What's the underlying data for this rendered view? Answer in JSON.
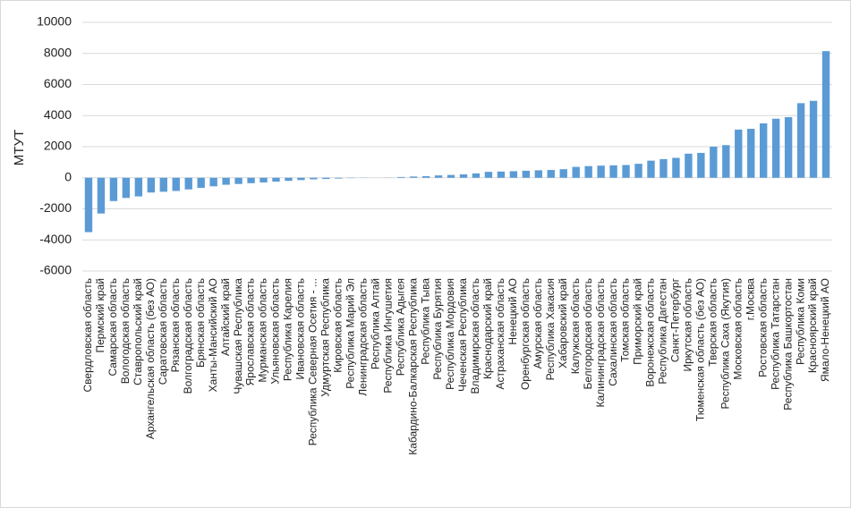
{
  "chart_data": {
    "type": "bar",
    "y_label": "МТУТ",
    "color": "#5b9bd5",
    "categories": [
      "Свердловская область",
      "Пермский край",
      "Самарская область",
      "Вологодская область",
      "Ставропольский край",
      "Архангельская область (без АО)",
      "Саратовская область",
      "Рязанская область",
      "Волгоградская область",
      "Брянская область",
      "Ханты-Мансийский АО",
      "Алтайский край",
      "Чувашская Республика",
      "Ярославская область",
      "Мурманская область",
      "Ульяновская область",
      "Республика Карелия",
      "Ивановская область",
      "Республика Северная Осетия - ...",
      "Удмуртская Республика",
      "Кировская область",
      "Республика Марий Эл",
      "Ленинградская область",
      "Республика Алтай",
      "Республика Ингушетия",
      "Республика Адыгея",
      "Кабардино-Балкарская Республика",
      "Республика Тыва",
      "Республика Бурятия",
      "Республика Мордовия",
      "Чеченская Республика",
      "Владимирская область",
      "Краснодарский край",
      "Астраханская область",
      "Ненецкий АО",
      "Оренбургская область",
      "Амурская область",
      "Республика Хакасия",
      "Хабаровский край",
      "Калужская область",
      "Белгородская область",
      "Калининградская область",
      "Сахалинская область",
      "Томская область",
      "Приморский край",
      "Воронежская область",
      "Республика Дагестан",
      "Санкт-Петербург",
      "Иркутская область",
      "Тюменская область (без АО)",
      "Тверская область",
      "Республика Саха (Якутия)",
      "Московская область",
      "г.Москва",
      "Ростовская область",
      "Республика Татарстан",
      "Республика Башкортостан",
      "Республика Коми",
      "Красноярский край",
      "Ямало-Ненецкий АО"
    ],
    "values": [
      -3500,
      -2300,
      -1500,
      -1300,
      -1200,
      -950,
      -900,
      -850,
      -750,
      -650,
      -550,
      -450,
      -400,
      -350,
      -300,
      -250,
      -200,
      -150,
      -100,
      -80,
      -50,
      -20,
      -10,
      0,
      10,
      50,
      80,
      100,
      150,
      180,
      220,
      280,
      380,
      400,
      420,
      450,
      480,
      500,
      550,
      700,
      750,
      780,
      800,
      820,
      900,
      1100,
      1200,
      1280,
      1550,
      1600,
      2000,
      2100,
      3100,
      3150,
      3500,
      3800,
      3900,
      4800,
      4950,
      8150
    ],
    "ylim": [
      -6000,
      10000
    ],
    "yticks": [
      -6000,
      -4000,
      -2000,
      0,
      2000,
      4000,
      6000,
      8000,
      10000
    ],
    "grid": true
  }
}
